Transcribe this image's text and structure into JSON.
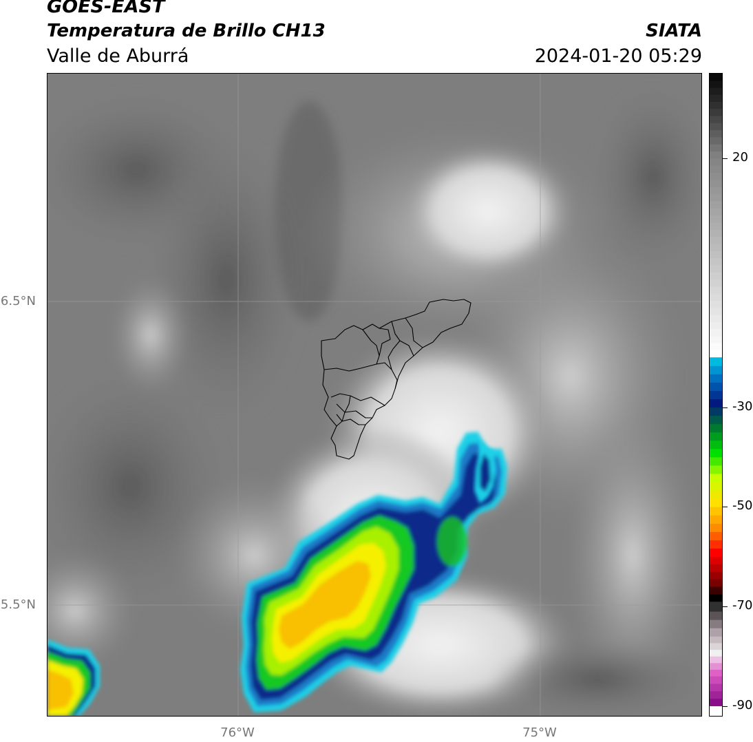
{
  "header": {
    "satellite": "GOES-EAST",
    "product": "Temperatura de Brillo CH13",
    "region": "Valle de Aburrá",
    "brand": "SIATA",
    "timestamp": "2024-01-20 05:29"
  },
  "map": {
    "lat_labels": [
      "6.5°N",
      "5.5°N"
    ],
    "lon_labels": [
      "76°W",
      "75°W"
    ],
    "lon_range": [
      -76.63,
      -74.48
    ],
    "lat_range": [
      5.13,
      7.24
    ],
    "gridlines": true,
    "overlay": "municipal boundaries of Valle de Aburrá"
  },
  "colorbar": {
    "tick_labels": [
      "20",
      "-30",
      "-50",
      "-70",
      "-90"
    ],
    "tick_values": [
      20,
      -30,
      -50,
      -70,
      -90
    ],
    "range": [
      -92,
      37
    ],
    "stops": [
      {
        "v": -92,
        "c": "#ffffff"
      },
      {
        "v": -90,
        "c": "#8a0e8a"
      },
      {
        "v": -84,
        "c": "#e060c8"
      },
      {
        "v": -80,
        "c": "#f0f0f0"
      },
      {
        "v": -76,
        "c": "#b0a0a8"
      },
      {
        "v": -71,
        "c": "#303030"
      },
      {
        "v": -69,
        "c": "#000000"
      },
      {
        "v": -66,
        "c": "#7a0000"
      },
      {
        "v": -60,
        "c": "#ff0000"
      },
      {
        "v": -55,
        "c": "#ff8c00"
      },
      {
        "v": -50,
        "c": "#ffe000"
      },
      {
        "v": -45,
        "c": "#c8ff00"
      },
      {
        "v": -40,
        "c": "#00e000"
      },
      {
        "v": -35,
        "c": "#007a30"
      },
      {
        "v": -30,
        "c": "#001a80"
      },
      {
        "v": -25,
        "c": "#0070c0"
      },
      {
        "v": -20,
        "c": "#00e0f0"
      },
      {
        "v": -19.9,
        "c": "#ffffff"
      },
      {
        "v": -10,
        "c": "#e0e0e0"
      },
      {
        "v": 0,
        "c": "#c0c0c0"
      },
      {
        "v": 10,
        "c": "#a0a0a0"
      },
      {
        "v": 20,
        "c": "#808080"
      },
      {
        "v": 30,
        "c": "#303030"
      },
      {
        "v": 37,
        "c": "#000000"
      }
    ],
    "palette": {
      "cyan": "#1fd0e8",
      "blue": "#1a7ac8",
      "navy": "#0a2a8a",
      "green": "#18c820",
      "lime": "#a8f000",
      "yellow": "#f5f000",
      "orange": "#f8c000"
    }
  }
}
